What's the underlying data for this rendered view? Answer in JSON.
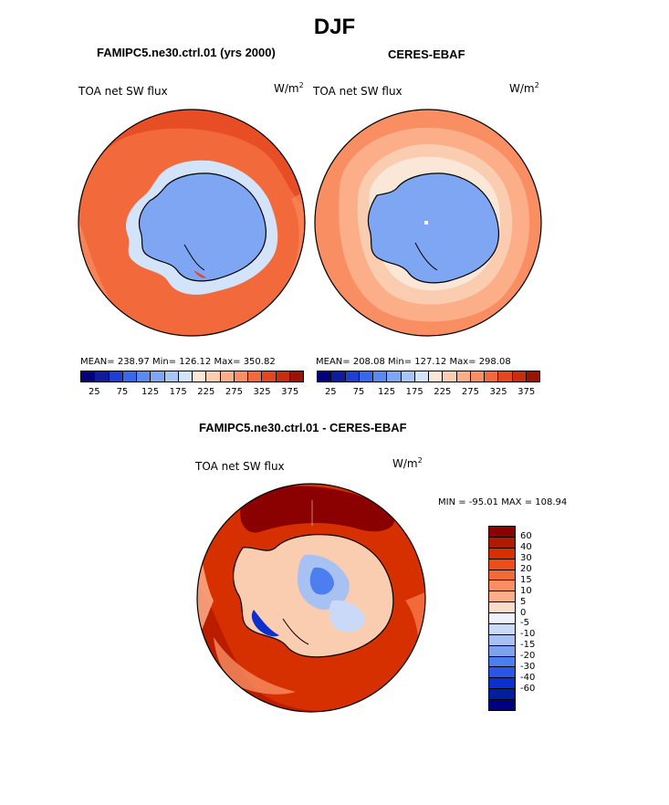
{
  "figure": {
    "title": "DJF",
    "variable_label": "TOA net SW flux",
    "units_base": "W/m",
    "units_exp": "2"
  },
  "panel_model": {
    "subtitle": "FAMIPC5.ne30.ctrl.01 (yrs 2000)",
    "stats": "MEAN= 238.97   Min= 126.12   Max= 350.82"
  },
  "panel_obs": {
    "subtitle": "CERES-EBAF",
    "stats": "MEAN= 208.08   Min= 127.12   Max= 298.08"
  },
  "panel_diff": {
    "subtitle": "FAMIPC5.ne30.ctrl.01 - CERES-EBAF",
    "minmax": "MIN = -95.01  MAX = 108.94"
  },
  "colorbar_abs": {
    "colors": [
      "#00007f",
      "#0d1c9e",
      "#1f3fd0",
      "#3868ec",
      "#5a8af0",
      "#7fa6f2",
      "#a9c5f5",
      "#d3e3fa",
      "#fbe7d8",
      "#fbcdb0",
      "#fbae88",
      "#f88e62",
      "#f26a3c",
      "#e4461f",
      "#c82d10",
      "#9c1204"
    ],
    "tick_labels": [
      "25",
      "75",
      "125",
      "175",
      "225",
      "275",
      "325",
      "375"
    ]
  },
  "colorbar_diff": {
    "colors": [
      "#8b0000",
      "#b31800",
      "#d62f00",
      "#ec4d1a",
      "#f26a3c",
      "#f88e62",
      "#fbae88",
      "#fcdcc8",
      "#f0f2fb",
      "#c9d9f7",
      "#a7c1f3",
      "#7ea2ef",
      "#4d7ef0",
      "#2a55e6",
      "#0c2fcf",
      "#001ea0",
      "#000080"
    ],
    "tick_labels": [
      "60",
      "40",
      "30",
      "20",
      "15",
      "10",
      "5",
      "0",
      "-5",
      "-10",
      "-15",
      "-20",
      "-30",
      "-40",
      "-60"
    ]
  }
}
